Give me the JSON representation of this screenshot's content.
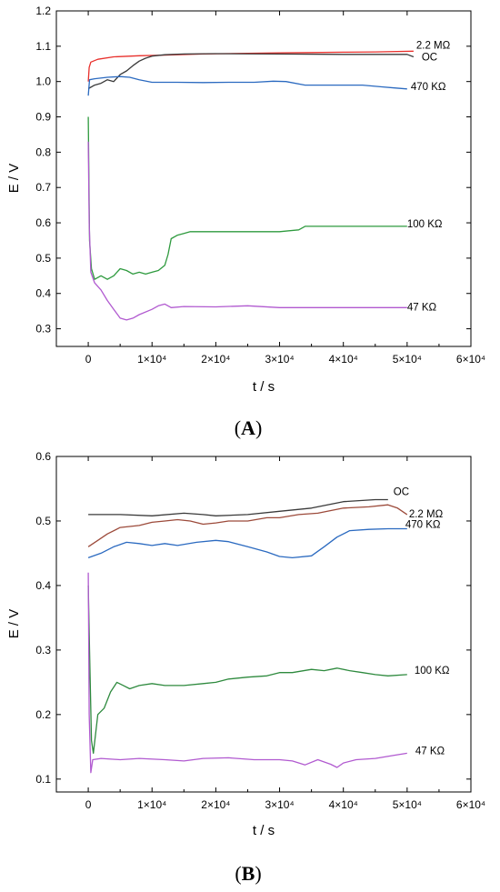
{
  "chart_data": [
    {
      "panel_label": "(A)",
      "type": "line",
      "xlabel": "t / s",
      "ylabel": "E / V",
      "xlim": [
        -5000,
        60000
      ],
      "ylim": [
        0.25,
        1.2
      ],
      "x_ticks": [
        {
          "value": 0,
          "label": "0"
        },
        {
          "value": 10000,
          "label": "1×10⁴"
        },
        {
          "value": 20000,
          "label": "2×10⁴"
        },
        {
          "value": 30000,
          "label": "3×10⁴"
        },
        {
          "value": 40000,
          "label": "4×10⁴"
        },
        {
          "value": 50000,
          "label": "5×10⁴"
        },
        {
          "value": 60000,
          "label": "6×10⁴"
        }
      ],
      "y_ticks": [
        {
          "value": 0.3,
          "label": "0.3"
        },
        {
          "value": 0.4,
          "label": "0.4"
        },
        {
          "value": 0.5,
          "label": "0.5"
        },
        {
          "value": 0.6,
          "label": "0.6"
        },
        {
          "value": 0.7,
          "label": "0.7"
        },
        {
          "value": 0.8,
          "label": "0.8"
        },
        {
          "value": 0.9,
          "label": "0.9"
        },
        {
          "value": 1.0,
          "label": "1.0"
        },
        {
          "value": 1.1,
          "label": "1.1"
        },
        {
          "value": 1.2,
          "label": "1.2"
        }
      ],
      "series": [
        {
          "name": "2.2 MΩ",
          "color": "#e8302c",
          "points": [
            [
              0,
              1.0
            ],
            [
              150,
              1.04
            ],
            [
              400,
              1.055
            ],
            [
              1500,
              1.063
            ],
            [
              4000,
              1.07
            ],
            [
              8000,
              1.073
            ],
            [
              12000,
              1.075
            ],
            [
              18000,
              1.078
            ],
            [
              25000,
              1.08
            ],
            [
              30000,
              1.081
            ],
            [
              35000,
              1.082
            ],
            [
              40000,
              1.083
            ],
            [
              45000,
              1.084
            ],
            [
              51000,
              1.086
            ]
          ]
        },
        {
          "name": "OC",
          "color": "#3a3a3a",
          "points": [
            [
              0,
              0.98
            ],
            [
              1000,
              0.99
            ],
            [
              2000,
              0.995
            ],
            [
              3000,
              1.005
            ],
            [
              4000,
              1.0
            ],
            [
              5000,
              1.02
            ],
            [
              6000,
              1.03
            ],
            [
              7000,
              1.045
            ],
            [
              8000,
              1.058
            ],
            [
              9000,
              1.066
            ],
            [
              10000,
              1.072
            ],
            [
              12000,
              1.076
            ],
            [
              15000,
              1.078
            ],
            [
              20000,
              1.079
            ],
            [
              30000,
              1.078
            ],
            [
              40000,
              1.077
            ],
            [
              48000,
              1.077
            ],
            [
              50000,
              1.077
            ],
            [
              51000,
              1.07
            ]
          ]
        },
        {
          "name": "470 KΩ",
          "color": "#2b6ac0",
          "points": [
            [
              0,
              0.96
            ],
            [
              200,
              1.005
            ],
            [
              1000,
              1.008
            ],
            [
              3000,
              1.012
            ],
            [
              5000,
              1.014
            ],
            [
              6500,
              1.012
            ],
            [
              8000,
              1.005
            ],
            [
              10000,
              0.998
            ],
            [
              14000,
              0.998
            ],
            [
              18000,
              0.997
            ],
            [
              22000,
              0.998
            ],
            [
              26000,
              0.998
            ],
            [
              29000,
              1.001
            ],
            [
              31000,
              1.0
            ],
            [
              34000,
              0.99
            ],
            [
              38000,
              0.99
            ],
            [
              43000,
              0.99
            ],
            [
              46000,
              0.985
            ],
            [
              48000,
              0.982
            ],
            [
              50000,
              0.979
            ]
          ]
        },
        {
          "name": "100 KΩ",
          "color": "#2e9a3e",
          "points": [
            [
              0,
              0.9
            ],
            [
              200,
              0.55
            ],
            [
              500,
              0.47
            ],
            [
              1000,
              0.44
            ],
            [
              2000,
              0.45
            ],
            [
              3000,
              0.44
            ],
            [
              4000,
              0.45
            ],
            [
              5000,
              0.47
            ],
            [
              6000,
              0.465
            ],
            [
              7000,
              0.455
            ],
            [
              8000,
              0.46
            ],
            [
              9000,
              0.455
            ],
            [
              10000,
              0.46
            ],
            [
              11000,
              0.465
            ],
            [
              12000,
              0.48
            ],
            [
              12500,
              0.51
            ],
            [
              13000,
              0.555
            ],
            [
              14000,
              0.565
            ],
            [
              15000,
              0.57
            ],
            [
              16000,
              0.575
            ],
            [
              20000,
              0.575
            ],
            [
              30000,
              0.575
            ],
            [
              33000,
              0.58
            ],
            [
              34000,
              0.59
            ],
            [
              40000,
              0.59
            ],
            [
              50000,
              0.59
            ]
          ]
        },
        {
          "name": "47 KΩ",
          "color": "#b15ad0",
          "points": [
            [
              0,
              0.83
            ],
            [
              150,
              0.6
            ],
            [
              400,
              0.46
            ],
            [
              1000,
              0.43
            ],
            [
              2000,
              0.41
            ],
            [
              3000,
              0.38
            ],
            [
              4000,
              0.355
            ],
            [
              5000,
              0.33
            ],
            [
              6000,
              0.325
            ],
            [
              7000,
              0.33
            ],
            [
              8000,
              0.34
            ],
            [
              10000,
              0.355
            ],
            [
              11000,
              0.365
            ],
            [
              12000,
              0.37
            ],
            [
              13000,
              0.36
            ],
            [
              15000,
              0.363
            ],
            [
              20000,
              0.362
            ],
            [
              25000,
              0.365
            ],
            [
              30000,
              0.36
            ],
            [
              40000,
              0.36
            ],
            [
              50000,
              0.36
            ]
          ]
        }
      ]
    },
    {
      "panel_label": "(B)",
      "type": "line",
      "xlabel": "t / s",
      "ylabel": "E / V",
      "xlim": [
        -5000,
        60000
      ],
      "ylim": [
        0.08,
        0.6
      ],
      "x_ticks": [
        {
          "value": 0,
          "label": "0"
        },
        {
          "value": 10000,
          "label": "1×10⁴"
        },
        {
          "value": 20000,
          "label": "2×10⁴"
        },
        {
          "value": 30000,
          "label": "3×10⁴"
        },
        {
          "value": 40000,
          "label": "4×10⁴"
        },
        {
          "value": 50000,
          "label": "5×10⁴"
        },
        {
          "value": 60000,
          "label": "6×10⁴"
        }
      ],
      "y_ticks": [
        {
          "value": 0.1,
          "label": "0.1"
        },
        {
          "value": 0.2,
          "label": "0.2"
        },
        {
          "value": 0.3,
          "label": "0.3"
        },
        {
          "value": 0.4,
          "label": "0.4"
        },
        {
          "value": 0.5,
          "label": "0.5"
        },
        {
          "value": 0.6,
          "label": "0.6"
        }
      ],
      "series": [
        {
          "name": "OC",
          "color": "#3a3a3a",
          "points": [
            [
              0,
              0.51
            ],
            [
              5000,
              0.51
            ],
            [
              10000,
              0.508
            ],
            [
              15000,
              0.512
            ],
            [
              18000,
              0.51
            ],
            [
              20000,
              0.508
            ],
            [
              25000,
              0.51
            ],
            [
              30000,
              0.515
            ],
            [
              35000,
              0.52
            ],
            [
              40000,
              0.53
            ],
            [
              45000,
              0.533
            ],
            [
              47000,
              0.533
            ]
          ]
        },
        {
          "name": "2.2 MΩ",
          "color": "#9c4a3a",
          "points": [
            [
              0,
              0.46
            ],
            [
              1500,
              0.47
            ],
            [
              3000,
              0.48
            ],
            [
              5000,
              0.49
            ],
            [
              8000,
              0.493
            ],
            [
              10000,
              0.498
            ],
            [
              12000,
              0.5
            ],
            [
              14000,
              0.502
            ],
            [
              16000,
              0.5
            ],
            [
              18000,
              0.495
            ],
            [
              20000,
              0.497
            ],
            [
              22000,
              0.5
            ],
            [
              25000,
              0.5
            ],
            [
              28000,
              0.505
            ],
            [
              30000,
              0.505
            ],
            [
              33000,
              0.51
            ],
            [
              36000,
              0.512
            ],
            [
              40000,
              0.52
            ],
            [
              44000,
              0.522
            ],
            [
              47000,
              0.525
            ],
            [
              48500,
              0.52
            ],
            [
              50000,
              0.51
            ]
          ]
        },
        {
          "name": "470 KΩ",
          "color": "#2b6ac0",
          "points": [
            [
              0,
              0.443
            ],
            [
              2000,
              0.45
            ],
            [
              4000,
              0.46
            ],
            [
              6000,
              0.467
            ],
            [
              8000,
              0.465
            ],
            [
              10000,
              0.462
            ],
            [
              12000,
              0.465
            ],
            [
              14000,
              0.462
            ],
            [
              17000,
              0.467
            ],
            [
              20000,
              0.47
            ],
            [
              22000,
              0.468
            ],
            [
              25000,
              0.46
            ],
            [
              28000,
              0.452
            ],
            [
              30000,
              0.445
            ],
            [
              32000,
              0.443
            ],
            [
              35000,
              0.446
            ],
            [
              37000,
              0.46
            ],
            [
              39000,
              0.475
            ],
            [
              41000,
              0.485
            ],
            [
              44000,
              0.487
            ],
            [
              47000,
              0.488
            ],
            [
              50000,
              0.488
            ]
          ]
        },
        {
          "name": "100 KΩ",
          "color": "#2e8a3e",
          "points": [
            [
              0,
              0.4
            ],
            [
              200,
              0.3
            ],
            [
              500,
              0.16
            ],
            [
              800,
              0.14
            ],
            [
              1500,
              0.2
            ],
            [
              2500,
              0.21
            ],
            [
              3500,
              0.235
            ],
            [
              4500,
              0.25
            ],
            [
              5500,
              0.245
            ],
            [
              6500,
              0.24
            ],
            [
              8000,
              0.245
            ],
            [
              10000,
              0.248
            ],
            [
              12000,
              0.245
            ],
            [
              15000,
              0.245
            ],
            [
              18000,
              0.248
            ],
            [
              20000,
              0.25
            ],
            [
              22000,
              0.255
            ],
            [
              25000,
              0.258
            ],
            [
              28000,
              0.26
            ],
            [
              30000,
              0.265
            ],
            [
              32000,
              0.265
            ],
            [
              35000,
              0.27
            ],
            [
              37000,
              0.268
            ],
            [
              39000,
              0.272
            ],
            [
              41000,
              0.268
            ],
            [
              43000,
              0.265
            ],
            [
              45000,
              0.262
            ],
            [
              47000,
              0.26
            ],
            [
              50000,
              0.262
            ]
          ]
        },
        {
          "name": "47 KΩ",
          "color": "#b15ad0",
          "points": [
            [
              0,
              0.42
            ],
            [
              150,
              0.2
            ],
            [
              400,
              0.11
            ],
            [
              700,
              0.13
            ],
            [
              2000,
              0.132
            ],
            [
              5000,
              0.13
            ],
            [
              8000,
              0.132
            ],
            [
              12000,
              0.13
            ],
            [
              15000,
              0.128
            ],
            [
              18000,
              0.132
            ],
            [
              22000,
              0.133
            ],
            [
              26000,
              0.13
            ],
            [
              30000,
              0.13
            ],
            [
              32000,
              0.128
            ],
            [
              34000,
              0.122
            ],
            [
              36000,
              0.13
            ],
            [
              38000,
              0.123
            ],
            [
              39000,
              0.118
            ],
            [
              40000,
              0.125
            ],
            [
              42000,
              0.13
            ],
            [
              45000,
              0.132
            ],
            [
              48000,
              0.137
            ],
            [
              50000,
              0.14
            ]
          ]
        }
      ]
    }
  ]
}
